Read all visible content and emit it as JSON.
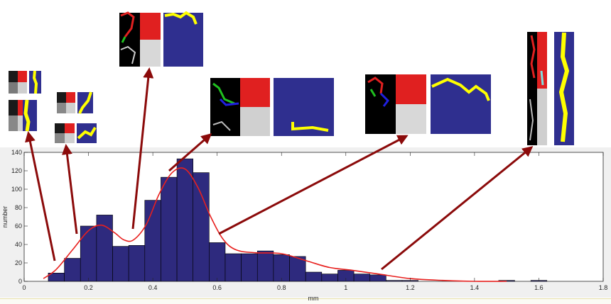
{
  "chart_data": {
    "type": "bar",
    "xlabel": "mm",
    "ylabel": "number",
    "xlim": [
      0,
      1.8
    ],
    "ylim": [
      0,
      140
    ],
    "xticks": [
      0,
      0.2,
      0.4,
      0.6,
      0.8,
      1,
      1.2,
      1.4,
      1.6,
      1.8
    ],
    "yticks": [
      0,
      20,
      40,
      60,
      80,
      100,
      120,
      140
    ],
    "bin_width": 0.05,
    "bin_starts": [
      0.075,
      0.125,
      0.175,
      0.225,
      0.275,
      0.325,
      0.375,
      0.425,
      0.475,
      0.525,
      0.575,
      0.625,
      0.675,
      0.725,
      0.775,
      0.825,
      0.875,
      0.925,
      0.975,
      1.025,
      1.075,
      1.125,
      1.175,
      1.225,
      1.275,
      1.325,
      1.375,
      1.425,
      1.475,
      1.525,
      1.575
    ],
    "values": [
      9,
      25,
      60,
      72,
      38,
      39,
      88,
      113,
      133,
      118,
      42,
      30,
      30,
      33,
      29,
      27,
      10,
      8,
      12,
      8,
      7,
      1,
      1,
      0,
      0,
      0,
      0,
      0,
      1,
      0,
      1
    ],
    "grid": false,
    "colors": {
      "bars": "#2e2a7e",
      "bar_edge": "#000000",
      "fit": "#e8201e",
      "arrows": "#8b0a0a",
      "paths": "#ffff00",
      "patch_bg": "#2f2f8f"
    },
    "fit_curve": {
      "x": [
        0.06,
        0.1,
        0.15,
        0.2,
        0.24,
        0.28,
        0.31,
        0.34,
        0.38,
        0.42,
        0.46,
        0.5,
        0.54,
        0.58,
        0.62,
        0.66,
        0.72,
        0.8,
        0.88,
        0.95,
        1.02,
        1.1,
        1.2,
        1.3,
        1.4,
        1.5
      ],
      "y": [
        3,
        13,
        34,
        55,
        61,
        53,
        45,
        45,
        62,
        95,
        118,
        122,
        102,
        70,
        45,
        34,
        31,
        30,
        22,
        15,
        12,
        8,
        3,
        1,
        0,
        0
      ]
    }
  }
}
